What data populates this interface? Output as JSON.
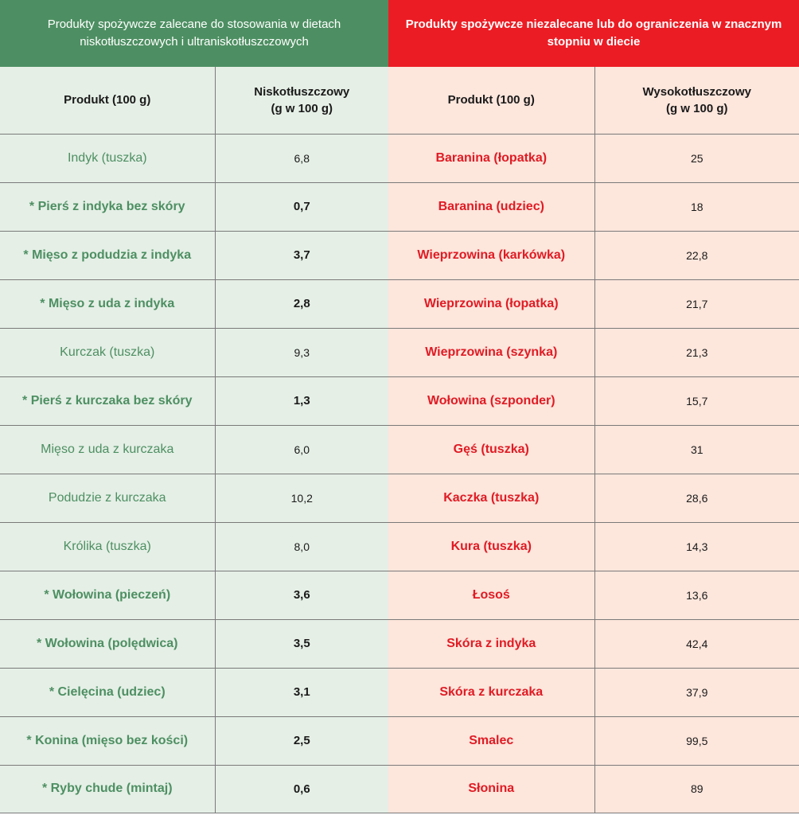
{
  "header": {
    "left_title": "Produkty spożywcze zalecane do stosowania w dietach niskotłuszczowych i ultraniskotłuszczowych",
    "right_title": "Produkty spożywcze niezalecane lub do ograniczenia w znacznym stopniu w diecie"
  },
  "columns": {
    "product_left": "Produkt (100 g)",
    "low_fat_line1": "Niskotłuszczowy",
    "low_fat_line2": "(g w 100 g)",
    "product_right": "Produkt (100 g)",
    "high_fat_line1": "Wysokotłuszczowy",
    "high_fat_line2": "(g w 100 g)"
  },
  "rows": [
    {
      "low_product": "Indyk (tuszka)",
      "low_value": "6,8",
      "low_star": false,
      "high_product": "Baranina (łopatka)",
      "high_value": "25"
    },
    {
      "low_product": "* Pierś z indyka bez skóry",
      "low_value": "0,7",
      "low_star": true,
      "high_product": "Baranina (udziec)",
      "high_value": "18"
    },
    {
      "low_product": "* Mięso z podudzia z indyka",
      "low_value": "3,7",
      "low_star": true,
      "high_product": "Wieprzowina (karkówka)",
      "high_value": "22,8"
    },
    {
      "low_product": "* Mięso z uda z indyka",
      "low_value": "2,8",
      "low_star": true,
      "high_product": "Wieprzowina (łopatka)",
      "high_value": "21,7"
    },
    {
      "low_product": "Kurczak (tuszka)",
      "low_value": "9,3",
      "low_star": false,
      "high_product": "Wieprzowina (szynka)",
      "high_value": "21,3"
    },
    {
      "low_product": "* Pierś z kurczaka bez skóry",
      "low_value": "1,3",
      "low_star": true,
      "high_product": "Wołowina (szponder)",
      "high_value": "15,7"
    },
    {
      "low_product": "Mięso z uda z kurczaka",
      "low_value": "6,0",
      "low_star": false,
      "high_product": "Gęś (tuszka)",
      "high_value": "31"
    },
    {
      "low_product": "Podudzie z kurczaka",
      "low_value": "10,2",
      "low_star": false,
      "high_product": "Kaczka (tuszka)",
      "high_value": "28,6"
    },
    {
      "low_product": "Królika (tuszka)",
      "low_value": "8,0",
      "low_star": false,
      "high_product": "Kura (tuszka)",
      "high_value": "14,3"
    },
    {
      "low_product": "* Wołowina (pieczeń)",
      "low_value": "3,6",
      "low_star": true,
      "high_product": "Łosoś",
      "high_value": "13,6"
    },
    {
      "low_product": "* Wołowina (polędwica)",
      "low_value": "3,5",
      "low_star": true,
      "high_product": "Skóra z indyka",
      "high_value": "42,4"
    },
    {
      "low_product": "* Cielęcina (udziec)",
      "low_value": "3,1",
      "low_star": true,
      "high_product": "Skóra z kurczaka",
      "high_value": "37,9"
    },
    {
      "low_product": "* Konina (mięso bez kości)",
      "low_value": "2,5",
      "low_star": true,
      "high_product": "Smalec",
      "high_value": "99,5"
    },
    {
      "low_product": "* Ryby chude (mintaj)",
      "low_value": "0,6",
      "low_star": true,
      "high_product": "Słonina",
      "high_value": "89"
    }
  ],
  "colors": {
    "green_header": "#4d8f62",
    "red_header": "#ec1c24",
    "green_text": "#4d8f62",
    "red_text": "#e01b24",
    "green_bg": "#e5efe6",
    "red_bg": "#fde6dc"
  }
}
